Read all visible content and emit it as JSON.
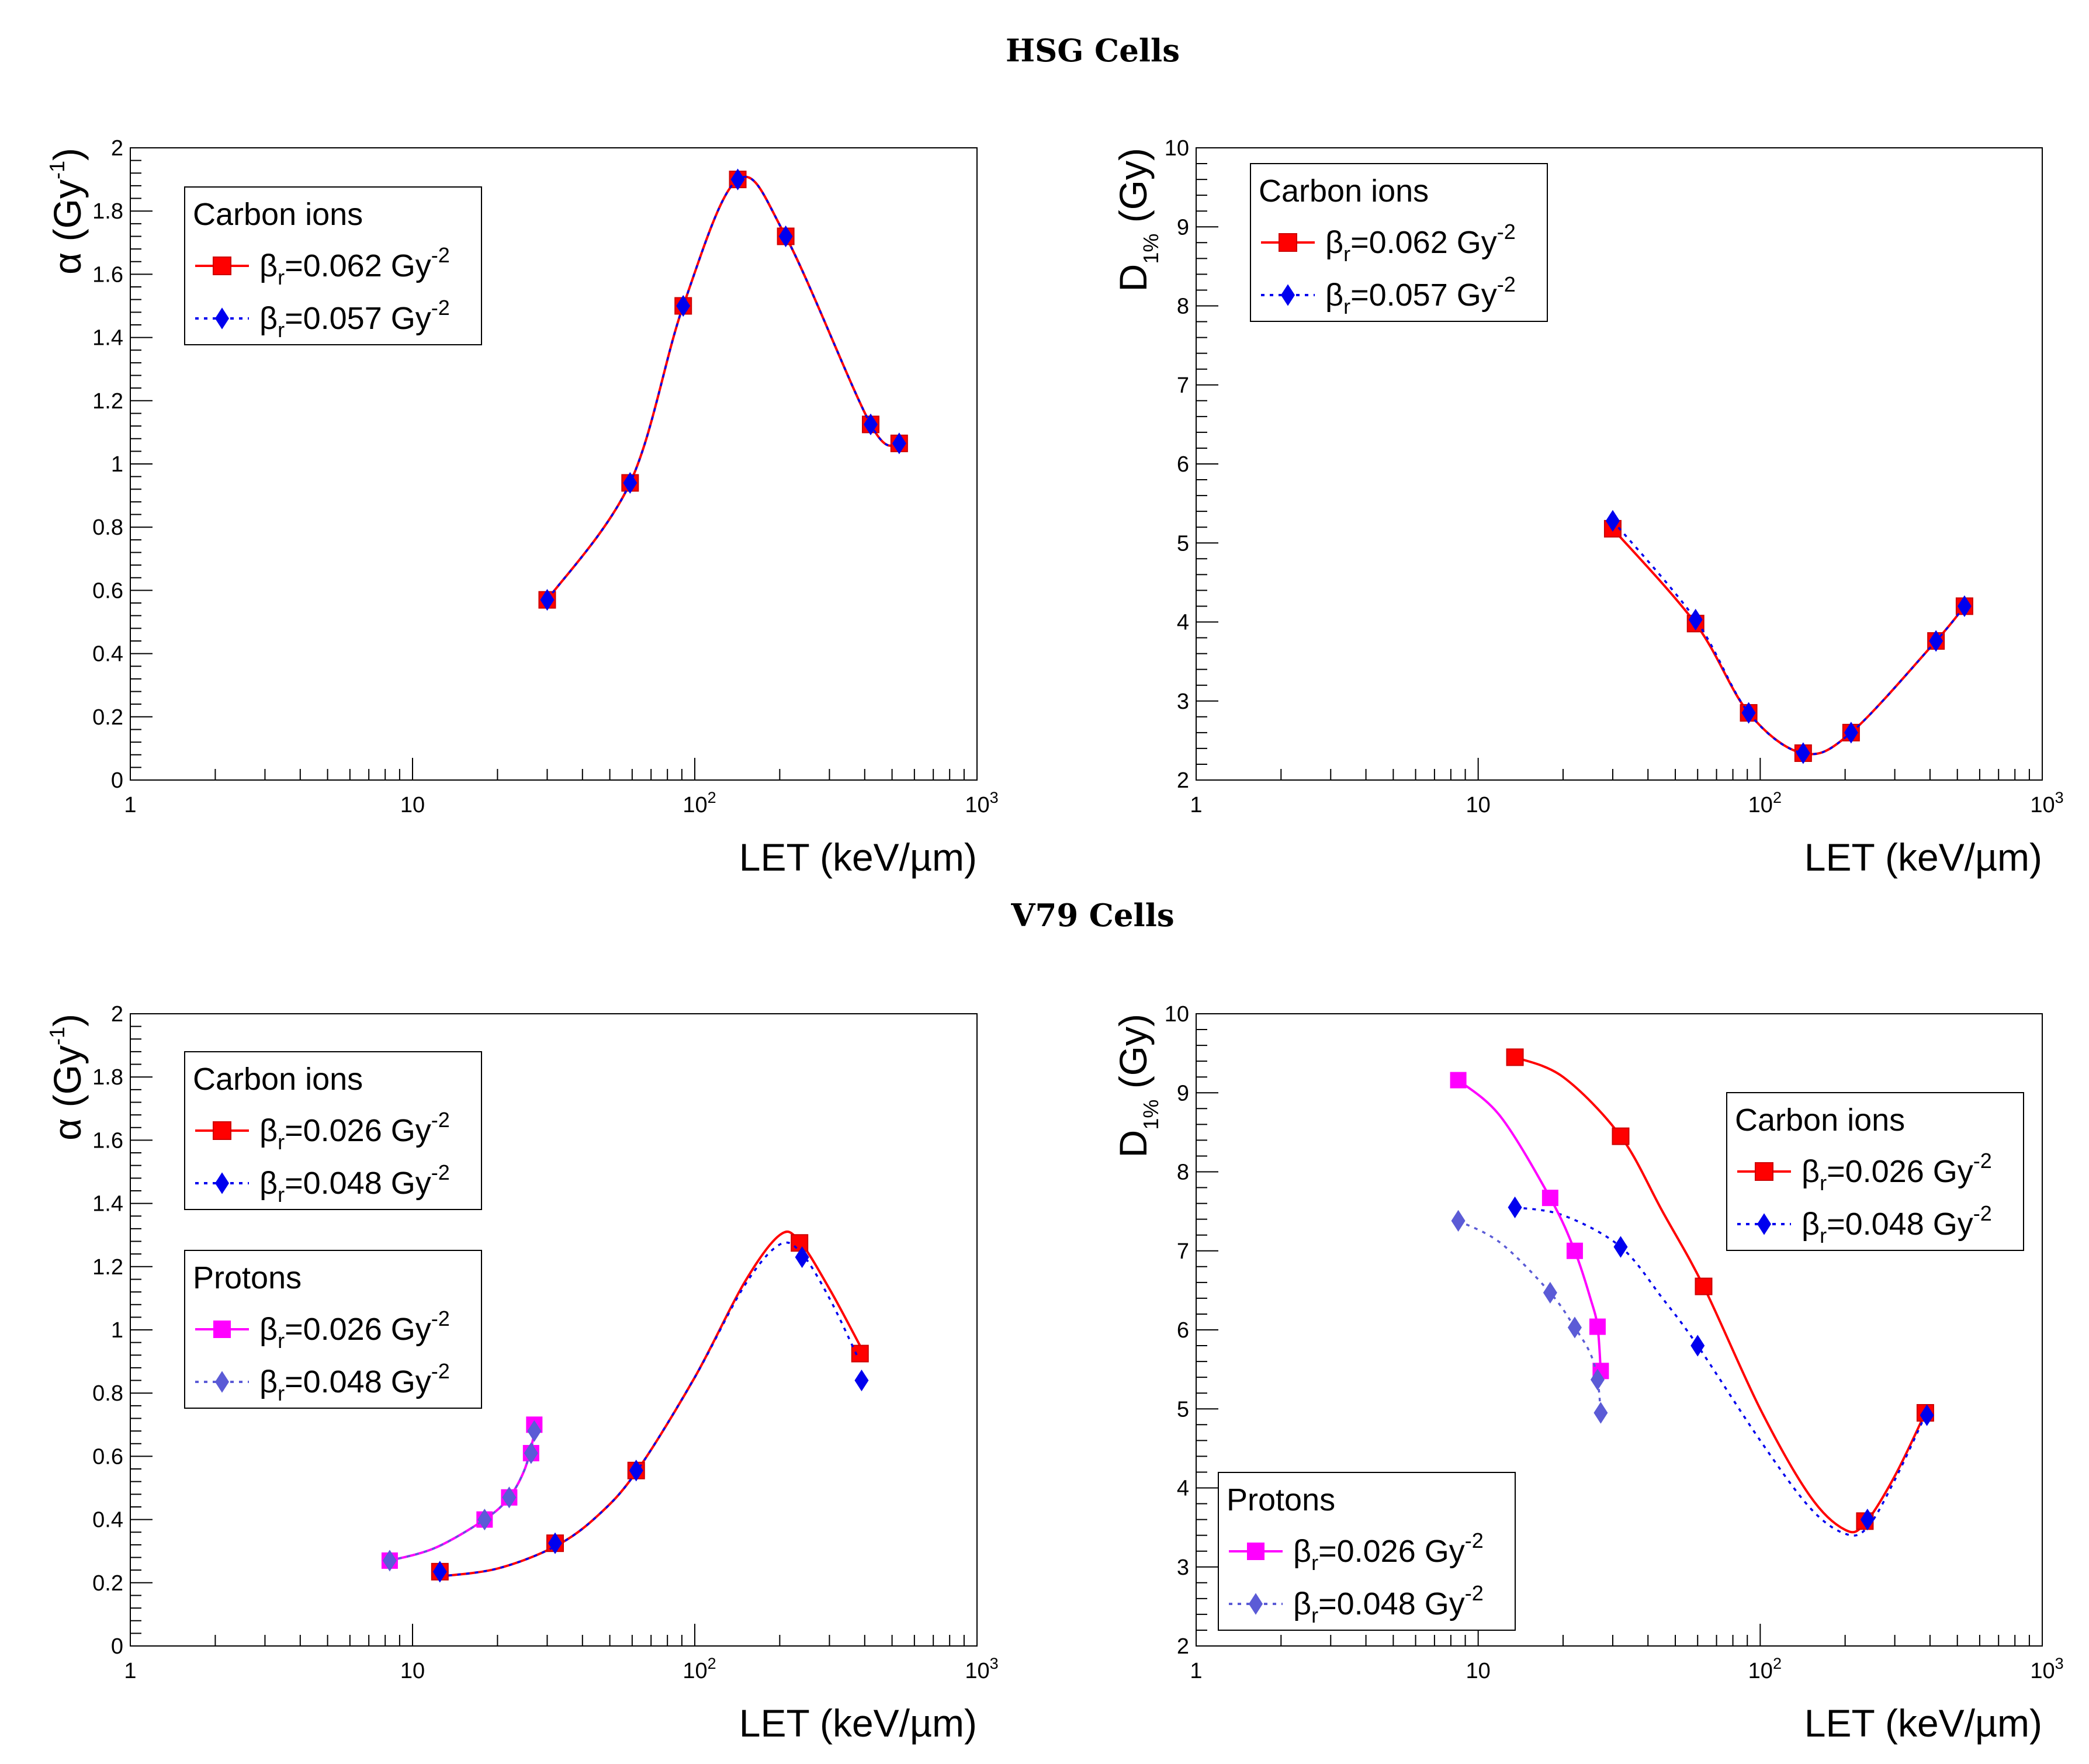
{
  "sections": [
    {
      "title": "HSG Cells"
    },
    {
      "title": "V79 Cells"
    }
  ],
  "colors": {
    "carbon_r1": "#ff0000",
    "carbon_r2": "#0000ee",
    "protons_r1": "#ff00ff",
    "protons_r2": "#5b5bd6",
    "marker_edge_square": "#cc0000"
  },
  "chart_data": [
    {
      "id": "hsg-alpha",
      "type": "line",
      "xscale": "log",
      "xlim": [
        1,
        1000
      ],
      "ylim": [
        0,
        2
      ],
      "xlabel": "LET (keV/µm)",
      "ylabel": {
        "base": "α (Gy",
        "sup": "-1",
        "tail": ")"
      },
      "yticks": [
        "0",
        "0.2",
        "0.4",
        "0.6",
        "0.8",
        "1",
        "1.2",
        "1.4",
        "1.6",
        "1.8",
        "2"
      ],
      "xticks": [
        {
          "base": "1"
        },
        {
          "base": "10"
        },
        {
          "base": "10",
          "sup": "2"
        },
        {
          "base": "10",
          "sup": "3"
        }
      ],
      "legends": [
        {
          "title": "Carbon ions",
          "position": "top-left",
          "entries": [
            {
              "sym": "β",
              "sub": "r",
              "text": "=0.062 Gy",
              "sup": "-2",
              "series": 0
            },
            {
              "sym": "β",
              "sub": "r",
              "text": "=0.057 Gy",
              "sup": "-2",
              "series": 1
            }
          ]
        }
      ],
      "series": [
        {
          "name": "Carbon ions, βr=0.062 Gy^-2",
          "color_key": "carbon_r1",
          "marker": "square",
          "dash": "solid",
          "x": [
            30,
            59,
            91,
            142,
            210,
            420,
            530
          ],
          "y": [
            0.57,
            0.94,
            1.5,
            1.9,
            1.72,
            1.125,
            1.065
          ]
        },
        {
          "name": "Carbon ions, βr=0.057 Gy^-2",
          "color_key": "carbon_r2",
          "marker": "diamond",
          "dash": "dotted",
          "x": [
            30,
            59,
            91,
            142,
            210,
            420,
            530
          ],
          "y": [
            0.57,
            0.94,
            1.5,
            1.9,
            1.72,
            1.125,
            1.065
          ]
        }
      ]
    },
    {
      "id": "hsg-d1",
      "type": "line",
      "xscale": "log",
      "xlim": [
        1,
        1000
      ],
      "ylim": [
        2,
        10
      ],
      "xlabel": "LET (keV/µm)",
      "ylabel": {
        "base": "D",
        "sub": "1%",
        "tail": " (Gy)"
      },
      "yticks": [
        "2",
        "3",
        "4",
        "5",
        "6",
        "7",
        "8",
        "9",
        "10"
      ],
      "xticks": [
        {
          "base": "1"
        },
        {
          "base": "10"
        },
        {
          "base": "10",
          "sup": "2"
        },
        {
          "base": "10",
          "sup": "3"
        }
      ],
      "legends": [
        {
          "title": "Carbon ions",
          "position": "top-left",
          "entries": [
            {
              "sym": "β",
              "sub": "r",
              "text": "=0.062 Gy",
              "sup": "-2",
              "series": 0
            },
            {
              "sym": "β",
              "sub": "r",
              "text": "=0.057 Gy",
              "sup": "-2",
              "series": 1
            }
          ]
        }
      ],
      "series": [
        {
          "name": "Carbon ions, βr=0.062 Gy^-2",
          "color_key": "carbon_r1",
          "marker": "square",
          "dash": "solid",
          "x": [
            30,
            59,
            91,
            142,
            210,
            420,
            530
          ],
          "y": [
            5.18,
            3.98,
            2.85,
            2.34,
            2.6,
            3.76,
            4.2
          ]
        },
        {
          "name": "Carbon ions, βr=0.057 Gy^-2",
          "color_key": "carbon_r2",
          "marker": "diamond",
          "dash": "dotted",
          "x": [
            30,
            59,
            91,
            142,
            210,
            420,
            530
          ],
          "y": [
            5.28,
            4.03,
            2.85,
            2.34,
            2.6,
            3.76,
            4.2
          ]
        }
      ]
    },
    {
      "id": "v79-alpha",
      "type": "line",
      "xscale": "log",
      "xlim": [
        1,
        1000
      ],
      "ylim": [
        0,
        2
      ],
      "xlabel": "LET (keV/µm)",
      "ylabel": {
        "base": "α (Gy",
        "sup": "-1",
        "tail": ")"
      },
      "yticks": [
        "0",
        "0.2",
        "0.4",
        "0.6",
        "0.8",
        "1",
        "1.2",
        "1.4",
        "1.6",
        "1.8",
        "2"
      ],
      "xticks": [
        {
          "base": "1"
        },
        {
          "base": "10"
        },
        {
          "base": "10",
          "sup": "2"
        },
        {
          "base": "10",
          "sup": "3"
        }
      ],
      "legends": [
        {
          "title": "Carbon ions",
          "position": "top-left",
          "entries": [
            {
              "sym": "β",
              "sub": "r",
              "text": "=0.026 Gy",
              "sup": "-2",
              "series": 0
            },
            {
              "sym": "β",
              "sub": "r",
              "text": "=0.048 Gy",
              "sup": "-2",
              "series": 1
            }
          ]
        },
        {
          "title": "Protons",
          "position": "middle-left",
          "entries": [
            {
              "sym": "β",
              "sub": "r",
              "text": "=0.026 Gy",
              "sup": "-2",
              "series": 2
            },
            {
              "sym": "β",
              "sub": "r",
              "text": "=0.048 Gy",
              "sup": "-2",
              "series": 3
            }
          ]
        }
      ],
      "series": [
        {
          "name": "Carbon ions, βr=0.026 Gy^-2",
          "color_key": "carbon_r1",
          "marker": "square",
          "dash": "solid",
          "x": [
            12.5,
            32,
            62,
            235,
            385
          ],
          "y": [
            0.235,
            0.325,
            0.555,
            1.275,
            0.925
          ],
          "curve_x": [
            12.5,
            20,
            32,
            45,
            62,
            100,
            150,
            200,
            235,
            300,
            385
          ],
          "curve_y": [
            0.22,
            0.245,
            0.315,
            0.41,
            0.55,
            0.85,
            1.15,
            1.3,
            1.28,
            1.13,
            0.95
          ]
        },
        {
          "name": "Carbon ions, βr=0.048 Gy^-2",
          "color_key": "carbon_r2",
          "marker": "diamond",
          "dash": "dotted",
          "x": [
            12.5,
            32,
            62,
            240,
            390
          ],
          "y": [
            0.235,
            0.325,
            0.555,
            1.23,
            0.84
          ],
          "curve_x": [
            12.5,
            20,
            32,
            45,
            62,
            100,
            150,
            200,
            240,
            300,
            375
          ],
          "curve_y": [
            0.22,
            0.245,
            0.315,
            0.41,
            0.55,
            0.85,
            1.14,
            1.27,
            1.24,
            1.1,
            0.92
          ]
        },
        {
          "name": "Protons, βr=0.026 Gy^-2",
          "color_key": "protons_r1",
          "marker": "square",
          "dash": "solid",
          "x": [
            8.3,
            18,
            22,
            26.3,
            27
          ],
          "y": [
            0.27,
            0.4,
            0.47,
            0.61,
            0.7
          ],
          "curve_x": [
            8.3,
            12,
            18,
            22,
            25,
            27
          ],
          "curve_y": [
            0.27,
            0.31,
            0.4,
            0.47,
            0.56,
            0.67
          ]
        },
        {
          "name": "Protons, βr=0.048 Gy^-2",
          "color_key": "protons_r2",
          "marker": "diamond",
          "dash": "dotted",
          "x": [
            8.3,
            18,
            22,
            26.3,
            27
          ],
          "y": [
            0.27,
            0.4,
            0.47,
            0.61,
            0.68
          ],
          "curve_x": [
            8.3,
            12,
            18,
            22,
            25,
            27
          ],
          "curve_y": [
            0.27,
            0.31,
            0.4,
            0.47,
            0.56,
            0.66
          ]
        }
      ]
    },
    {
      "id": "v79-d1",
      "type": "line",
      "xscale": "log",
      "xlim": [
        1,
        1000
      ],
      "ylim": [
        2,
        10
      ],
      "xlabel": "LET (keV/µm)",
      "ylabel": {
        "base": "D",
        "sub": "1%",
        "tail": " (Gy)"
      },
      "yticks": [
        "2",
        "3",
        "4",
        "5",
        "6",
        "7",
        "8",
        "9",
        "10"
      ],
      "xticks": [
        {
          "base": "1"
        },
        {
          "base": "10"
        },
        {
          "base": "10",
          "sup": "2"
        },
        {
          "base": "10",
          "sup": "3"
        }
      ],
      "legends": [
        {
          "title": "Carbon ions",
          "position": "middle-right",
          "entries": [
            {
              "sym": "β",
              "sub": "r",
              "text": "=0.026 Gy",
              "sup": "-2",
              "series": 0
            },
            {
              "sym": "β",
              "sub": "r",
              "text": "=0.048 Gy",
              "sup": "-2",
              "series": 1
            }
          ]
        },
        {
          "title": "Protons",
          "position": "bottom-left",
          "entries": [
            {
              "sym": "β",
              "sub": "r",
              "text": "=0.026 Gy",
              "sup": "-2",
              "series": 2
            },
            {
              "sym": "β",
              "sub": "r",
              "text": "=0.048 Gy",
              "sup": "-2",
              "series": 3
            }
          ]
        }
      ],
      "series": [
        {
          "name": "Carbon ions, βr=0.026 Gy^-2",
          "color_key": "carbon_r1",
          "marker": "square",
          "dash": "solid",
          "x": [
            13.5,
            32,
            63,
            235,
            385
          ],
          "y": [
            9.45,
            8.45,
            6.55,
            3.58,
            4.95
          ],
          "curve_x": [
            13.5,
            20,
            32,
            45,
            63,
            100,
            150,
            200,
            235,
            300,
            385
          ],
          "curve_y": [
            9.45,
            9.2,
            8.45,
            7.5,
            6.55,
            5.0,
            3.9,
            3.47,
            3.55,
            4.15,
            4.95
          ]
        },
        {
          "name": "Carbon ions, βr=0.048 Gy^-2",
          "color_key": "carbon_r2",
          "marker": "diamond",
          "dash": "dotted",
          "x": [
            13.5,
            32,
            60,
            240,
            390
          ],
          "y": [
            7.55,
            7.05,
            5.8,
            3.6,
            4.92
          ],
          "curve_x": [
            13.5,
            20,
            32,
            45,
            60,
            100,
            150,
            200,
            240,
            300,
            385
          ],
          "curve_y": [
            7.55,
            7.45,
            7.05,
            6.4,
            5.8,
            4.6,
            3.75,
            3.42,
            3.5,
            4.1,
            4.92
          ]
        },
        {
          "name": "Protons, βr=0.026 Gy^-2",
          "color_key": "protons_r1",
          "marker": "square",
          "dash": "solid",
          "x": [
            8.5,
            18,
            22,
            26.5,
            27.2
          ],
          "y": [
            9.16,
            7.67,
            7.0,
            6.04,
            5.48
          ],
          "curve_x": [
            8.5,
            12,
            18,
            22,
            25,
            26.5,
            27.2
          ],
          "curve_y": [
            9.16,
            8.7,
            7.67,
            7.0,
            6.4,
            6.04,
            5.48
          ]
        },
        {
          "name": "Protons, βr=0.048 Gy^-2",
          "color_key": "protons_r2",
          "marker": "diamond",
          "dash": "dotted",
          "x": [
            8.5,
            18,
            22,
            26.5,
            27.2
          ],
          "y": [
            7.38,
            6.47,
            6.03,
            5.37,
            4.95
          ],
          "curve_x": [
            8.5,
            12,
            18,
            22,
            25,
            26.5,
            27.2
          ],
          "curve_y": [
            7.38,
            7.1,
            6.47,
            6.03,
            5.7,
            5.37,
            4.95
          ]
        }
      ]
    }
  ]
}
